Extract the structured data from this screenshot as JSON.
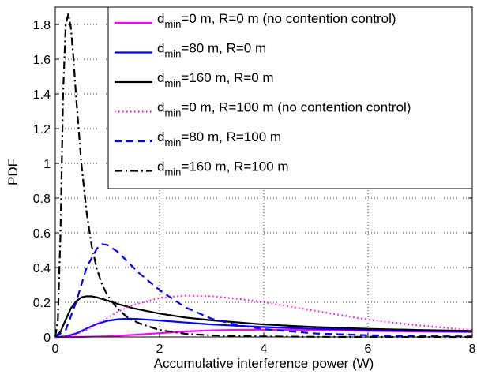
{
  "chart_data": {
    "type": "line",
    "title": "",
    "xlabel": "Accumulative interference power (W)",
    "ylabel": "PDF",
    "xlim": [
      0,
      8
    ],
    "ylim": [
      0,
      1.9
    ],
    "xticks": [
      0,
      2,
      4,
      6,
      8
    ],
    "yticks": [
      0,
      0.2,
      0.4,
      0.6,
      0.8,
      1,
      1.2,
      1.4,
      1.6,
      1.8
    ],
    "grid": true,
    "legend_position": "top-right",
    "series": [
      {
        "name": "d_min=0 m, R=0 m (no contention control)",
        "label_main": "d",
        "label_sub": "min",
        "label_rest": "=0 m, R=0 m (no contention control)",
        "color": "#ff00ff",
        "style": "solid",
        "x": [
          0,
          0.5,
          1,
          1.5,
          2,
          2.5,
          3,
          3.5,
          4,
          4.5,
          5,
          6,
          7,
          8
        ],
        "y": [
          0,
          0.0005,
          0.004,
          0.012,
          0.022,
          0.032,
          0.038,
          0.041,
          0.042,
          0.041,
          0.039,
          0.035,
          0.031,
          0.028
        ]
      },
      {
        "name": "d_min=80 m, R=0 m",
        "label_main": "d",
        "label_sub": "min",
        "label_rest": "=80 m, R=0 m",
        "color": "#0000ff",
        "style": "solid",
        "x": [
          0,
          0.2,
          0.4,
          0.6,
          0.8,
          1,
          1.2,
          1.4,
          1.6,
          2,
          2.5,
          3,
          4,
          5,
          6,
          7,
          8
        ],
        "y": [
          0,
          0.003,
          0.02,
          0.048,
          0.075,
          0.093,
          0.102,
          0.105,
          0.103,
          0.095,
          0.083,
          0.072,
          0.057,
          0.047,
          0.04,
          0.035,
          0.031
        ]
      },
      {
        "name": "d_min=160 m, R=0 m",
        "label_main": "d",
        "label_sub": "min",
        "label_rest": "=160 m, R=0 m",
        "color": "#000000",
        "style": "solid",
        "x": [
          0,
          0.1,
          0.2,
          0.3,
          0.4,
          0.5,
          0.6,
          0.7,
          0.8,
          1,
          1.2,
          1.5,
          2,
          2.5,
          3,
          4,
          5,
          6,
          7,
          8
        ],
        "y": [
          0,
          0.03,
          0.1,
          0.165,
          0.205,
          0.228,
          0.235,
          0.234,
          0.228,
          0.21,
          0.19,
          0.165,
          0.135,
          0.112,
          0.096,
          0.072,
          0.057,
          0.047,
          0.04,
          0.035
        ]
      },
      {
        "name": "d_min=0 m, R=100 m (no contention control)",
        "label_main": "d",
        "label_sub": "min",
        "label_rest": "=0 m, R=100 m (no contention control)",
        "color": "#ff00ff",
        "style": "dotted",
        "x": [
          0,
          0.2,
          0.4,
          0.6,
          0.8,
          1,
          1.2,
          1.5,
          2,
          2.5,
          3,
          3.5,
          4,
          4.5,
          5,
          5.5,
          6,
          6.5,
          7,
          7.5,
          8
        ],
        "y": [
          0,
          0.003,
          0.015,
          0.04,
          0.075,
          0.11,
          0.145,
          0.185,
          0.225,
          0.238,
          0.235,
          0.22,
          0.2,
          0.175,
          0.15,
          0.125,
          0.1,
          0.082,
          0.066,
          0.052,
          0.04
        ]
      },
      {
        "name": "d_min=80 m, R=100 m",
        "label_main": "d",
        "label_sub": "min",
        "label_rest": "=80 m, R=100 m",
        "color": "#0000ff",
        "style": "dashed",
        "x": [
          0,
          0.2,
          0.4,
          0.6,
          0.8,
          0.9,
          1,
          1.2,
          1.4,
          1.6,
          1.8,
          2,
          2.5,
          3,
          3.5,
          4,
          5,
          6,
          7,
          8
        ],
        "y": [
          0,
          0.04,
          0.2,
          0.4,
          0.51,
          0.535,
          0.53,
          0.49,
          0.43,
          0.37,
          0.32,
          0.27,
          0.17,
          0.105,
          0.068,
          0.045,
          0.02,
          0.01,
          0.005,
          0.003
        ]
      },
      {
        "name": "d_min=160 m, R=100 m",
        "label_main": "d",
        "label_sub": "min",
        "label_rest": "=160 m, R=100 m",
        "color": "#000000",
        "style": "dashdot",
        "x": [
          0,
          0.05,
          0.1,
          0.15,
          0.2,
          0.25,
          0.3,
          0.35,
          0.4,
          0.5,
          0.6,
          0.7,
          0.8,
          0.9,
          1,
          1.2,
          1.4,
          1.6,
          2,
          2.5,
          3,
          4,
          5,
          6,
          8
        ],
        "y": [
          0,
          0.1,
          0.6,
          1.4,
          1.8,
          1.86,
          1.78,
          1.6,
          1.38,
          1.0,
          0.72,
          0.52,
          0.39,
          0.3,
          0.24,
          0.16,
          0.11,
          0.08,
          0.04,
          0.018,
          0.009,
          0.003,
          0.001,
          0.0005,
          0
        ]
      }
    ]
  }
}
